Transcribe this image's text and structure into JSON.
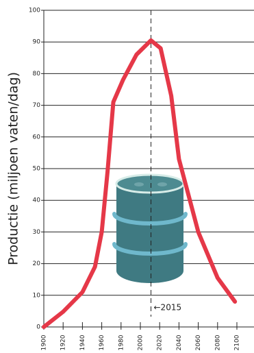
{
  "chart_data": {
    "type": "line",
    "y_label": "Productie (miljoen vaten/dag)",
    "x": [
      1900,
      1920,
      1940,
      1953,
      1960,
      1966,
      1972,
      1982,
      1996,
      2011,
      2021,
      2032,
      2040,
      2060,
      2080,
      2098
    ],
    "series": [
      {
        "color": "#e53848",
        "values": [
          0,
          4.8,
          11,
          19,
          30,
          49,
          71,
          78,
          86,
          90.5,
          88,
          73,
          53,
          30,
          15.5,
          8
        ]
      }
    ],
    "xlim": [
      1900,
      2100
    ],
    "xticks": [
      1900,
      1920,
      1940,
      1960,
      1980,
      2000,
      2020,
      2040,
      2060,
      2080,
      2100
    ],
    "ylim": [
      0,
      100
    ],
    "yticks": [
      0,
      10,
      20,
      30,
      40,
      50,
      60,
      70,
      80,
      90,
      100
    ],
    "grid": true,
    "marker_line": {
      "x": 2011,
      "label": "←2015"
    }
  }
}
